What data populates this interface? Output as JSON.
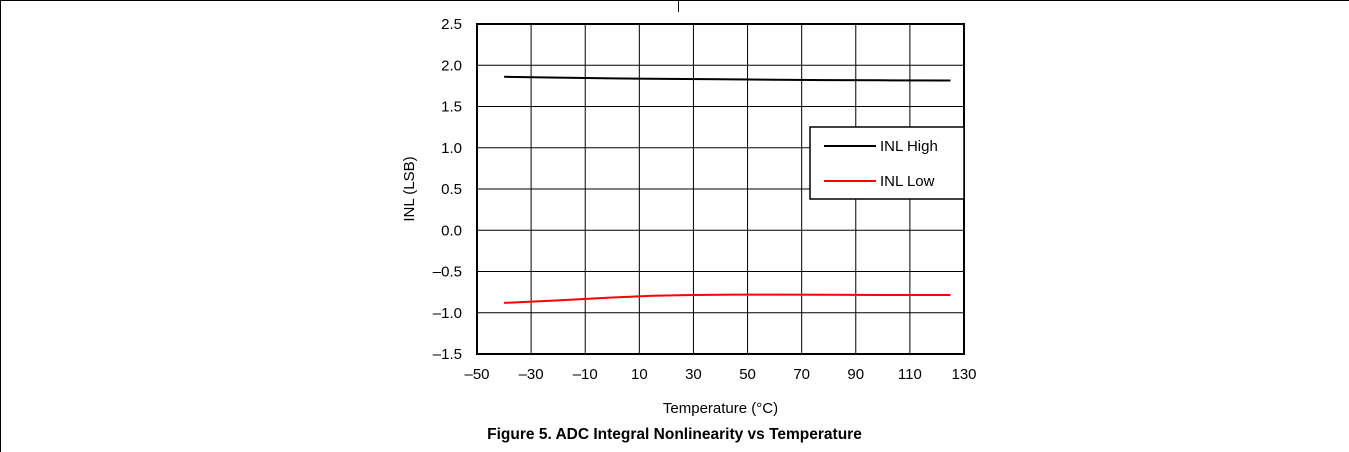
{
  "caption": "Figure 5. ADC Integral Nonlinearity vs Temperature",
  "chart_data": {
    "type": "line",
    "title": "",
    "xlabel": "Temperature (°C)",
    "ylabel": "INL (LSB)",
    "xlim": [
      -50,
      130
    ],
    "ylim": [
      -1.5,
      2.5
    ],
    "x_ticks": [
      -50,
      -30,
      -10,
      10,
      30,
      50,
      70,
      90,
      110,
      130
    ],
    "x_tick_labels": [
      "–50",
      "–30",
      "–10",
      "10",
      "30",
      "50",
      "70",
      "90",
      "110",
      "130"
    ],
    "y_ticks": [
      -1.5,
      -1.0,
      -0.5,
      0.0,
      0.5,
      1.0,
      1.5,
      2.0,
      2.5
    ],
    "y_tick_labels": [
      "–1.5",
      "–1.0",
      "–0.5",
      "0.0",
      "0.5",
      "1.0",
      "1.5",
      "2.0",
      "2.5"
    ],
    "grid": true,
    "legend_position": "right",
    "series": [
      {
        "name": "INL High",
        "color": "#000000",
        "x": [
          -40,
          -20,
          0,
          20,
          40,
          60,
          80,
          100,
          125
        ],
        "y": [
          1.86,
          1.85,
          1.84,
          1.835,
          1.83,
          1.825,
          1.82,
          1.818,
          1.815
        ]
      },
      {
        "name": "INL Low",
        "color": "#ff0000",
        "x": [
          -40,
          -20,
          0,
          15,
          30,
          45,
          60,
          80,
          100,
          125
        ],
        "y": [
          -0.88,
          -0.85,
          -0.815,
          -0.795,
          -0.785,
          -0.78,
          -0.78,
          -0.782,
          -0.785,
          -0.785
        ]
      }
    ]
  }
}
